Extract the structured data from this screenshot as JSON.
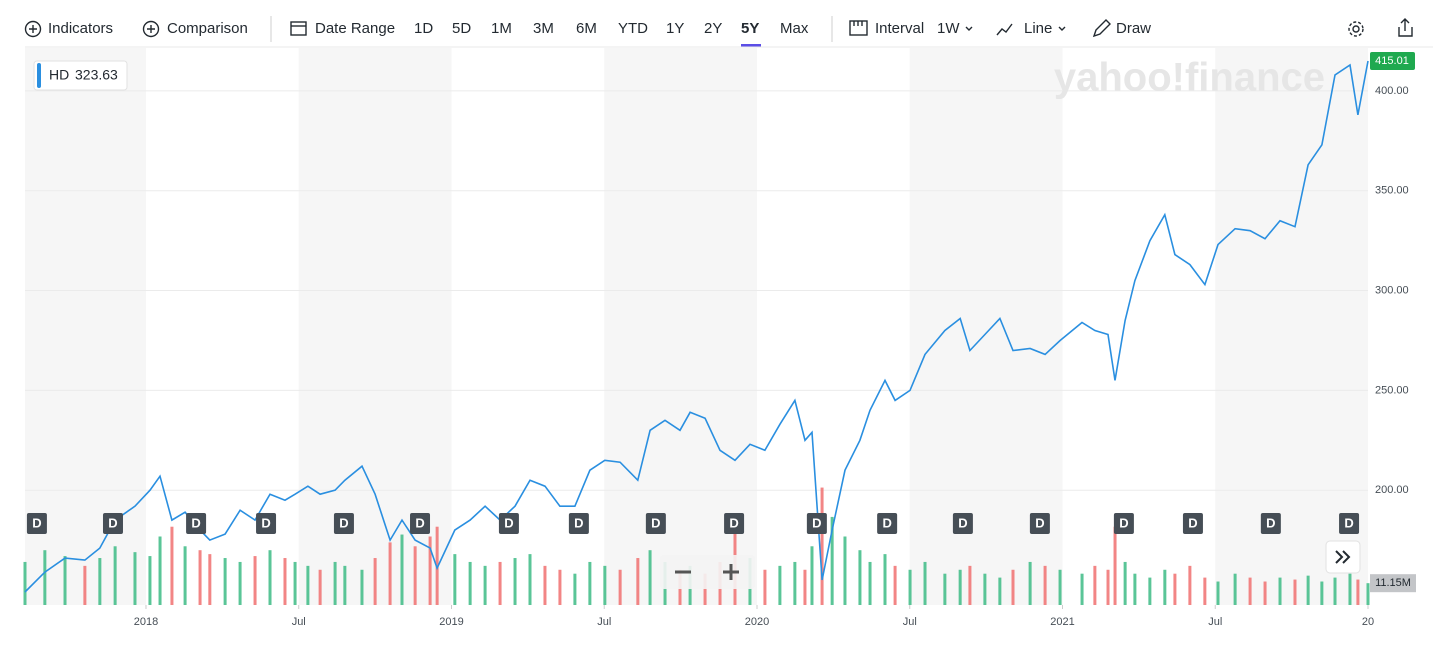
{
  "toolbar": {
    "indicators": "Indicators",
    "comparison": "Comparison",
    "date_range": "Date Range",
    "ranges": [
      "1D",
      "5D",
      "1M",
      "3M",
      "6M",
      "YTD",
      "1Y",
      "2Y",
      "5Y",
      "Max"
    ],
    "selected_range": "5Y",
    "interval": "Interval",
    "interval_value": "1W",
    "chart_style": "Line",
    "draw": "Draw"
  },
  "watermark": "yahoo!finance",
  "legend": {
    "symbol": "HD",
    "value": 323.63
  },
  "chart_data": {
    "type": "line",
    "x": [
      2017.604,
      2017.669,
      2017.735,
      2017.8,
      2017.849,
      2017.899,
      2017.964,
      2018.013,
      2018.046,
      2018.085,
      2018.128,
      2018.177,
      2018.209,
      2018.259,
      2018.308,
      2018.357,
      2018.406,
      2018.455,
      2018.488,
      2018.53,
      2018.57,
      2018.619,
      2018.651,
      2018.707,
      2018.75,
      2018.799,
      2018.838,
      2018.881,
      2018.93,
      2018.953,
      2019.011,
      2019.061,
      2019.11,
      2019.159,
      2019.208,
      2019.257,
      2019.306,
      2019.355,
      2019.404,
      2019.453,
      2019.502,
      2019.552,
      2019.61,
      2019.65,
      2019.699,
      2019.748,
      2019.781,
      2019.83,
      2019.879,
      2019.928,
      2019.977,
      2020.026,
      2020.075,
      2020.124,
      2020.157,
      2020.18,
      2020.213,
      2020.246,
      2020.288,
      2020.337,
      2020.37,
      2020.419,
      2020.452,
      2020.501,
      2020.55,
      2020.615,
      2020.665,
      2020.697,
      2020.746,
      2020.795,
      2020.838,
      2020.894,
      2020.943,
      2020.992,
      2021.064,
      2021.106,
      2021.149,
      2021.172,
      2021.205,
      2021.237,
      2021.286,
      2021.335,
      2021.368,
      2021.417,
      2021.466,
      2021.509,
      2021.565,
      2021.614,
      2021.663,
      2021.712,
      2021.761,
      2021.804,
      2021.849,
      2021.892,
      2021.941,
      2021.967,
      2022.0
    ],
    "series": [
      {
        "name": "HD",
        "color": "#2a8fe0",
        "values": [
          149,
          159,
          166,
          165,
          171,
          185,
          192,
          200,
          207,
          185,
          189,
          180,
          175,
          178,
          190,
          185,
          198,
          195,
          198,
          202,
          198,
          200,
          205,
          212,
          198,
          175,
          185,
          175,
          171,
          161,
          180,
          185,
          192,
          185,
          192,
          205,
          202,
          192,
          192,
          210,
          215,
          214,
          205,
          230,
          235,
          230,
          239,
          236,
          220,
          215,
          223,
          220,
          233,
          245,
          225,
          229,
          155,
          180,
          210,
          225,
          240,
          255,
          245,
          250,
          268,
          280,
          286,
          270,
          278,
          286,
          270,
          271,
          268,
          275,
          284,
          280,
          278,
          255,
          285,
          305,
          325,
          338,
          318,
          313,
          303,
          323,
          331,
          330,
          326,
          335,
          332,
          363,
          373,
          408,
          413,
          388,
          415.01
        ]
      },
      {
        "name": "Volume",
        "axis": "y2",
        "up_color": "#3dbb85",
        "down_color": "#f07070",
        "values": [
          22,
          28,
          25,
          20,
          24,
          30,
          27,
          25,
          35,
          40,
          30,
          28,
          26,
          24,
          22,
          25,
          28,
          24,
          22,
          20,
          18,
          22,
          20,
          18,
          24,
          32,
          36,
          30,
          35,
          40,
          26,
          22,
          20,
          22,
          24,
          26,
          20,
          18,
          16,
          22,
          20,
          18,
          24,
          28,
          22,
          18,
          20,
          16,
          22,
          40,
          24,
          18,
          20,
          22,
          18,
          30,
          60,
          45,
          35,
          28,
          22,
          26,
          20,
          18,
          22,
          16,
          18,
          20,
          16,
          14,
          18,
          22,
          20,
          18,
          16,
          20,
          18,
          40,
          22,
          16,
          14,
          18,
          16,
          20,
          14,
          12,
          16,
          14,
          12,
          14,
          13,
          15,
          12,
          14,
          16,
          13,
          11.15
        ]
      }
    ],
    "volume_label": {
      "value": 11.15,
      "label": "11.15M"
    },
    "xlim": [
      2017.604,
      2022.0
    ],
    "xticks": [
      2018,
      {
        "value": 2018.5,
        "label": "Jul"
      },
      2019,
      {
        "value": 2019.5,
        "label": "Jul"
      },
      2020,
      {
        "value": 2020.5,
        "label": "Jul"
      },
      2021,
      {
        "value": 2021.5,
        "label": "Jul"
      },
      {
        "value": 2022,
        "label": "20"
      }
    ],
    "ylim": [
      145,
      421.5
    ],
    "yticks": [
      {
        "value": 200,
        "label": "200.00"
      },
      {
        "value": 250,
        "label": "250.00"
      },
      {
        "value": 300,
        "label": "300.00"
      },
      {
        "value": 350,
        "label": "350.00"
      },
      {
        "value": 400,
        "label": "400.00"
      }
    ],
    "y2lim": [
      0,
      70
    ],
    "grid": true,
    "dividends": {
      "label": "D",
      "x": [
        2017.643,
        2017.892,
        2018.164,
        2018.393,
        2018.648,
        2018.897,
        2019.188,
        2019.417,
        2019.669,
        2019.925,
        2020.196,
        2020.426,
        2020.674,
        2020.926,
        2021.201,
        2021.427,
        2021.682,
        2021.938
      ]
    }
  }
}
